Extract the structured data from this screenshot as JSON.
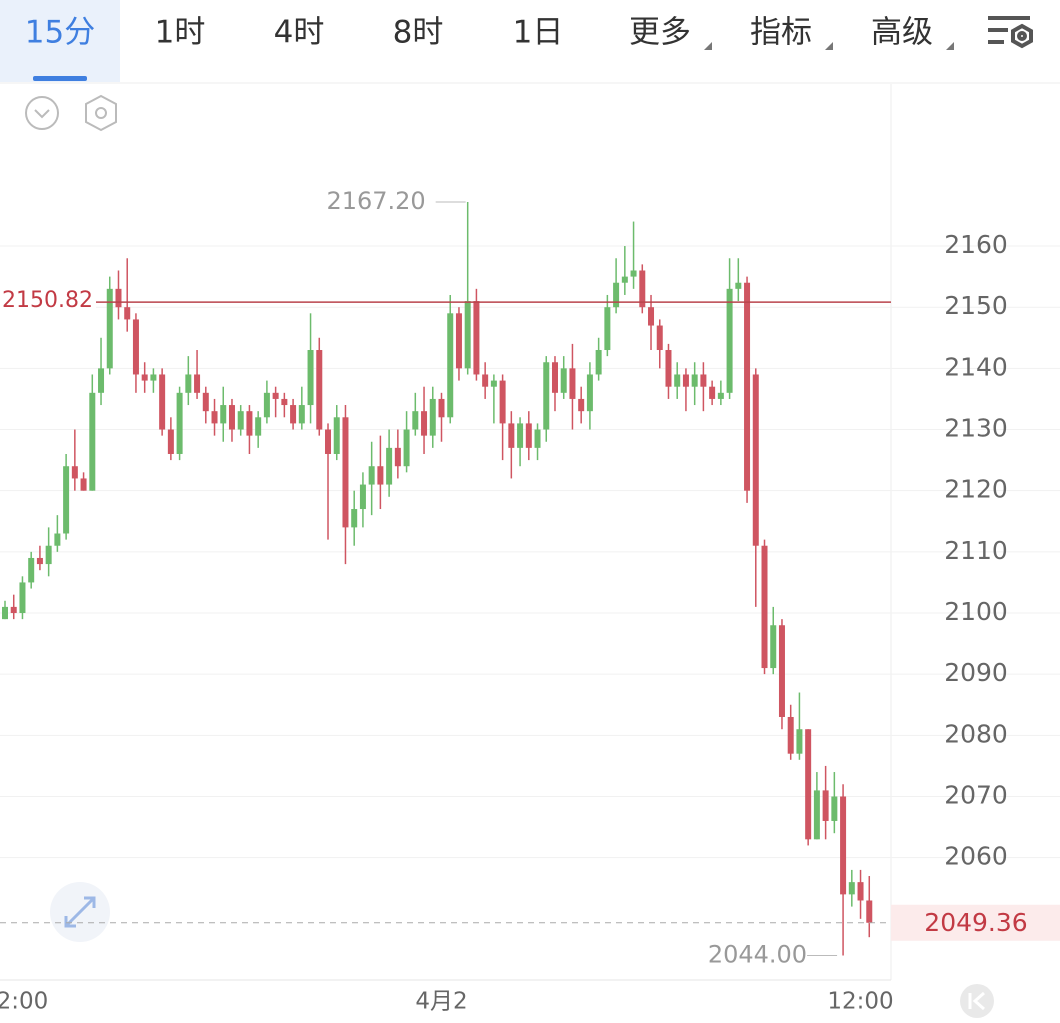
{
  "tabs": [
    "15分",
    "1时",
    "4时",
    "8时",
    "1日",
    "更多",
    "指标",
    "高级"
  ],
  "chart_data": {
    "type": "candlestick",
    "categories": [
      null,
      null,
      "2:00",
      null,
      null,
      null,
      null,
      null,
      null,
      null,
      null,
      null,
      null,
      null,
      null,
      null,
      null,
      null,
      null,
      null,
      null,
      null,
      null,
      null,
      null,
      null,
      null,
      null,
      null,
      null,
      null,
      null,
      null,
      null,
      null,
      null,
      null,
      null,
      null,
      null,
      null,
      null,
      null,
      null,
      null,
      null,
      null,
      null,
      null,
      null,
      "4月2",
      null,
      null,
      null,
      null,
      null,
      null,
      null,
      null,
      null,
      null,
      null,
      null,
      null,
      null,
      null,
      null,
      null,
      null,
      null,
      null,
      null,
      null,
      null,
      null,
      null,
      null,
      null,
      null,
      null,
      null,
      null,
      null,
      null,
      null,
      null,
      null,
      null,
      null,
      null,
      null,
      null,
      null,
      null,
      null,
      null,
      null,
      null,
      "12:00",
      null
    ],
    "open": [
      2099,
      2101,
      2100,
      2105,
      2109,
      2108,
      2111,
      2113,
      2124,
      2122,
      2120,
      2136,
      2140,
      2153,
      2150,
      2148,
      2139,
      2138,
      2139,
      2130,
      2126,
      2136,
      2139,
      2136,
      2133,
      2131,
      2134,
      2130,
      2133,
      2129,
      2132,
      2136,
      2135,
      2134,
      2131,
      2134,
      2143,
      2130,
      2126,
      2132,
      2114,
      2117,
      2121,
      2124,
      2121,
      2127,
      2124,
      2130,
      2133,
      2129,
      2135,
      2132,
      2149,
      2140,
      2151,
      2139,
      2137,
      2138,
      2131,
      2127,
      2131,
      2127,
      2130,
      2141,
      2136,
      2140,
      2135,
      2133,
      2139,
      2143,
      2150,
      2154,
      2155,
      2156,
      2150,
      2147,
      2143,
      2137,
      2139,
      2137,
      2139,
      2137,
      2135,
      2136,
      2153,
      2154,
      2139,
      2111,
      2091,
      2098,
      2083,
      2077,
      2081,
      2063,
      2071,
      2066,
      2070,
      2054,
      2056,
      2053
    ],
    "high": [
      2102,
      2103,
      2106,
      2110,
      2111,
      2114,
      2116,
      2126,
      2130,
      2123,
      2139,
      2145,
      2155,
      2156,
      2158,
      2149,
      2141,
      2140,
      2140,
      2132,
      2137,
      2142,
      2143,
      2137,
      2135,
      2137,
      2135,
      2134,
      2134,
      2133,
      2138,
      2137,
      2136,
      2135,
      2137,
      2149,
      2145,
      2131,
      2134,
      2134,
      2120,
      2123,
      2128,
      2129,
      2130,
      2130,
      2133,
      2136,
      2137,
      2137,
      2136,
      2152,
      2150,
      2167.2,
      2153,
      2141,
      2139,
      2139,
      2133,
      2132,
      2133,
      2131,
      2142,
      2142,
      2142,
      2144,
      2137,
      2141,
      2145,
      2152,
      2158,
      2160,
      2164,
      2157,
      2152,
      2148,
      2144,
      2141,
      2140,
      2141,
      2141,
      2138,
      2138,
      2158,
      2158,
      2155,
      2140,
      2112,
      2101,
      2099,
      2085,
      2087,
      2081,
      2074,
      2075,
      2074,
      2072,
      2058,
      2058,
      2057
    ],
    "low": [
      2099,
      2099,
      2099,
      2104,
      2107,
      2106,
      2110,
      2112,
      2120,
      2120,
      2120,
      2134,
      2139,
      2148,
      2146,
      2136,
      2136,
      2136,
      2129,
      2125,
      2125,
      2134,
      2135,
      2131,
      2129,
      2128,
      2128,
      2129,
      2126,
      2127,
      2131,
      2132,
      2132,
      2130,
      2130,
      2131,
      2129,
      2112,
      2125,
      2108,
      2111,
      2114,
      2116,
      2117,
      2119,
      2122,
      2123,
      2129,
      2126,
      2127,
      2128,
      2131,
      2138,
      2139,
      2138,
      2135,
      2131,
      2125,
      2122,
      2124,
      2125,
      2125,
      2128,
      2133,
      2135,
      2130,
      2131,
      2130,
      2138,
      2142,
      2149,
      2152,
      2153,
      2149,
      2143,
      2140,
      2135,
      2135,
      2133,
      2134,
      2133,
      2134,
      2134,
      2135,
      2151,
      2118,
      2101,
      2090,
      2090,
      2081,
      2076,
      2076,
      2062,
      2063,
      2063,
      2064,
      2044,
      2052,
      2050,
      2047
    ],
    "close": [
      2101,
      2100,
      2105,
      2109,
      2108,
      2111,
      2113,
      2124,
      2122,
      2120,
      2136,
      2140,
      2153,
      2150,
      2148,
      2139,
      2138,
      2139,
      2130,
      2126,
      2136,
      2139,
      2136,
      2133,
      2131,
      2134,
      2130,
      2133,
      2129,
      2132,
      2136,
      2135,
      2134,
      2131,
      2134,
      2143,
      2130,
      2126,
      2132,
      2114,
      2117,
      2121,
      2124,
      2121,
      2127,
      2124,
      2130,
      2133,
      2129,
      2135,
      2132,
      2149,
      2140,
      2151,
      2139,
      2137,
      2138,
      2131,
      2127,
      2131,
      2127,
      2130,
      2141,
      2136,
      2140,
      2135,
      2133,
      2139,
      2143,
      2150,
      2154,
      2155,
      2156,
      2150,
      2147,
      2143,
      2137,
      2139,
      2137,
      2139,
      2137,
      2135,
      2136,
      2153,
      2154,
      2120,
      2111,
      2091,
      2098,
      2083,
      2077,
      2081,
      2063,
      2071,
      2066,
      2070,
      2054,
      2056,
      2053,
      2049.36
    ],
    "up_color": "#6cbb6c",
    "down_color": "#cf5561",
    "ylim": [
      2040,
      2186
    ],
    "yticks": [
      2060,
      2070,
      2080,
      2090,
      2100,
      2110,
      2120,
      2130,
      2140,
      2150,
      2160
    ],
    "grid": true,
    "max_label": "2167.20",
    "min_label": "2044.00",
    "ref_line": {
      "value": 2150.82,
      "label": "2150.82"
    },
    "last_price": {
      "value": 2049.36,
      "label": "2049.36"
    }
  }
}
